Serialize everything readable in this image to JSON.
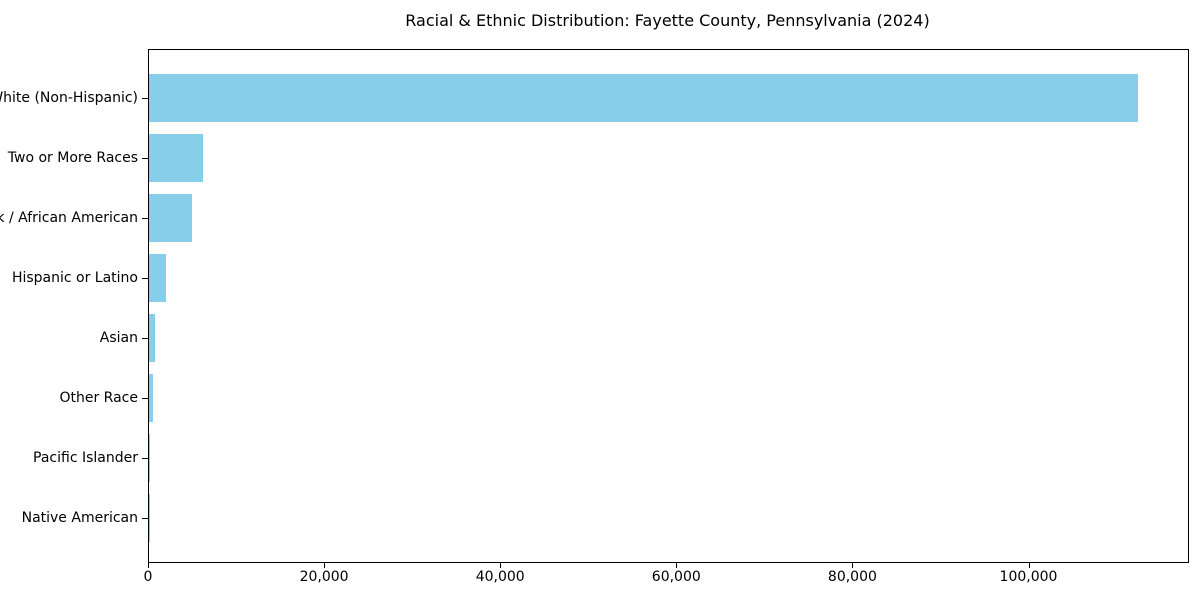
{
  "chart_data": {
    "type": "bar",
    "orientation": "horizontal",
    "title": "Racial & Ethnic Distribution: Fayette County, Pennsylvania (2024)",
    "categories": [
      "White (Non-Hispanic)",
      "Two or More Races",
      "Black / African American",
      "Hispanic or Latino",
      "Asian",
      "Other Race",
      "Pacific Islander",
      "Native American"
    ],
    "values": [
      112300,
      6100,
      4900,
      1900,
      680,
      450,
      40,
      25
    ],
    "xlabel": "",
    "ylabel": "",
    "xlim": [
      0,
      118000
    ],
    "xticks": [
      0,
      20000,
      40000,
      60000,
      80000,
      100000
    ],
    "xtick_labels": [
      "0",
      "20,000",
      "40,000",
      "60,000",
      "80,000",
      "100,000"
    ],
    "bar_color": "#87CEEB",
    "axis_color": "#000000",
    "grid": false,
    "legend": false
  }
}
